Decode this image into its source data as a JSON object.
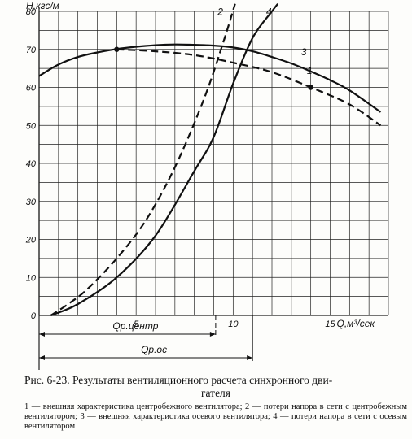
{
  "chart_data": {
    "type": "line",
    "ylabel": "H,кгс/м",
    "xlabel": "Q,м³/сек",
    "xlim": [
      0,
      18
    ],
    "ylim": [
      0,
      80
    ],
    "x_ticks": [
      {
        "value": 5,
        "label": "5"
      },
      {
        "value": 10,
        "label": "10"
      },
      {
        "value": 15,
        "label": "15"
      }
    ],
    "y_ticks": [
      0,
      10,
      20,
      30,
      40,
      50,
      60,
      70,
      80
    ],
    "grid": true,
    "series": [
      {
        "name": "1",
        "style": "dashed",
        "label_point": [
          13.8,
          63.5
        ],
        "marker_points": [
          [
            4,
            70
          ],
          [
            14,
            60
          ]
        ],
        "x": [
          4,
          6,
          8,
          10,
          12,
          14,
          16,
          17.6
        ],
        "y": [
          70,
          69.5,
          68.5,
          66.5,
          64,
          60,
          55.5,
          50
        ]
      },
      {
        "name": "2",
        "style": "dashed",
        "label_point": [
          9.2,
          79
        ],
        "x": [
          0.6,
          1.5,
          2.5,
          4,
          5.5,
          7,
          8.5,
          9.5,
          10.1
        ],
        "y": [
          0,
          3,
          7,
          15,
          25,
          39,
          57,
          72,
          82
        ]
      },
      {
        "name": "3",
        "style": "solid",
        "label_point": [
          13.5,
          68.5
        ],
        "x": [
          0,
          1,
          2,
          3,
          4,
          5,
          6,
          7,
          8,
          9,
          10,
          11,
          12,
          13,
          14,
          15,
          16,
          17.6
        ],
        "y": [
          63,
          66,
          68,
          69.2,
          70.1,
          70.7,
          71.1,
          71.3,
          71.2,
          71,
          70.5,
          69.5,
          68,
          66.3,
          64.2,
          61.9,
          59.2,
          53.5
        ]
      },
      {
        "name": "4",
        "style": "solid",
        "label_point": [
          11.7,
          79
        ],
        "x": [
          0.6,
          2,
          4,
          6,
          8,
          9,
          10,
          11,
          12,
          12.3
        ],
        "y": [
          0,
          3,
          10,
          21,
          38,
          47,
          61,
          73,
          80,
          82
        ]
      }
    ],
    "annotations": [
      {
        "label": "Qр.центр",
        "value": 9.1
      },
      {
        "label": "Qр.ос",
        "value": 11
      }
    ]
  },
  "caption": {
    "title_line1": "Рис. 6-23. Результаты вентиляционного расчета синхронного дви-",
    "title_line2": "гателя",
    "legend": "1 — внешняя характеристика центробежного вентилятора; 2 — потери напора в сети с центробежным вентилятором; 3 — внешняя характеристика осевого вентилятора; 4 — потери напора в сети с осевым вентилятором"
  }
}
